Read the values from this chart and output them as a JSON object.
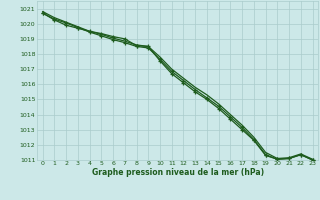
{
  "bg_color": "#cce8e8",
  "grid_color": "#aacccc",
  "line_color": "#1e5c1e",
  "xlabel": "Graphe pression niveau de la mer (hPa)",
  "xlim": [
    -0.5,
    23.5
  ],
  "ylim": [
    1011,
    1021.5
  ],
  "ytick_vals": [
    1011,
    1012,
    1013,
    1014,
    1015,
    1016,
    1017,
    1018,
    1019,
    1020,
    1021
  ],
  "xtick_vals": [
    0,
    1,
    2,
    3,
    4,
    5,
    6,
    7,
    8,
    9,
    10,
    11,
    12,
    13,
    14,
    15,
    16,
    17,
    18,
    19,
    20,
    21,
    22,
    23
  ],
  "line1_x": [
    0,
    1,
    2,
    3,
    4,
    5,
    6,
    7,
    8,
    9,
    10,
    11,
    12,
    13,
    14,
    15,
    16,
    17,
    18,
    19,
    20,
    21,
    22,
    23
  ],
  "line1_y": [
    1020.8,
    1020.4,
    1020.1,
    1019.8,
    1019.5,
    1019.3,
    1019.05,
    1018.85,
    1018.6,
    1018.5,
    1017.8,
    1017.0,
    1016.4,
    1015.8,
    1015.3,
    1014.7,
    1014.0,
    1013.3,
    1012.5,
    1011.5,
    1011.1,
    1011.15,
    1011.4,
    1011.05
  ],
  "line2_x": [
    0,
    1,
    2,
    3,
    4,
    5,
    6,
    7,
    8,
    9,
    10,
    11,
    12,
    13,
    14,
    15,
    16,
    17,
    18,
    19,
    20,
    21,
    22,
    23
  ],
  "line2_y": [
    1020.7,
    1020.3,
    1020.05,
    1019.75,
    1019.45,
    1019.2,
    1018.95,
    1018.75,
    1018.5,
    1018.4,
    1017.65,
    1016.85,
    1016.25,
    1015.65,
    1015.1,
    1014.55,
    1013.85,
    1013.15,
    1012.35,
    1011.35,
    1011.05,
    1011.1,
    1011.35,
    1011.0
  ],
  "line3_x": [
    0,
    1,
    2,
    3,
    4,
    5,
    6,
    7,
    8,
    9,
    10,
    11,
    12,
    13,
    14,
    15,
    16,
    17,
    18,
    19,
    20,
    21,
    22,
    23
  ],
  "line3_y": [
    1020.7,
    1020.25,
    1019.9,
    1019.7,
    1019.5,
    1019.35,
    1019.15,
    1019.0,
    1018.55,
    1018.5,
    1017.55,
    1016.7,
    1016.1,
    1015.5,
    1015.0,
    1014.4,
    1013.7,
    1013.0,
    1012.3,
    1011.3,
    1011.05,
    1011.1,
    1011.35,
    1011.0
  ]
}
